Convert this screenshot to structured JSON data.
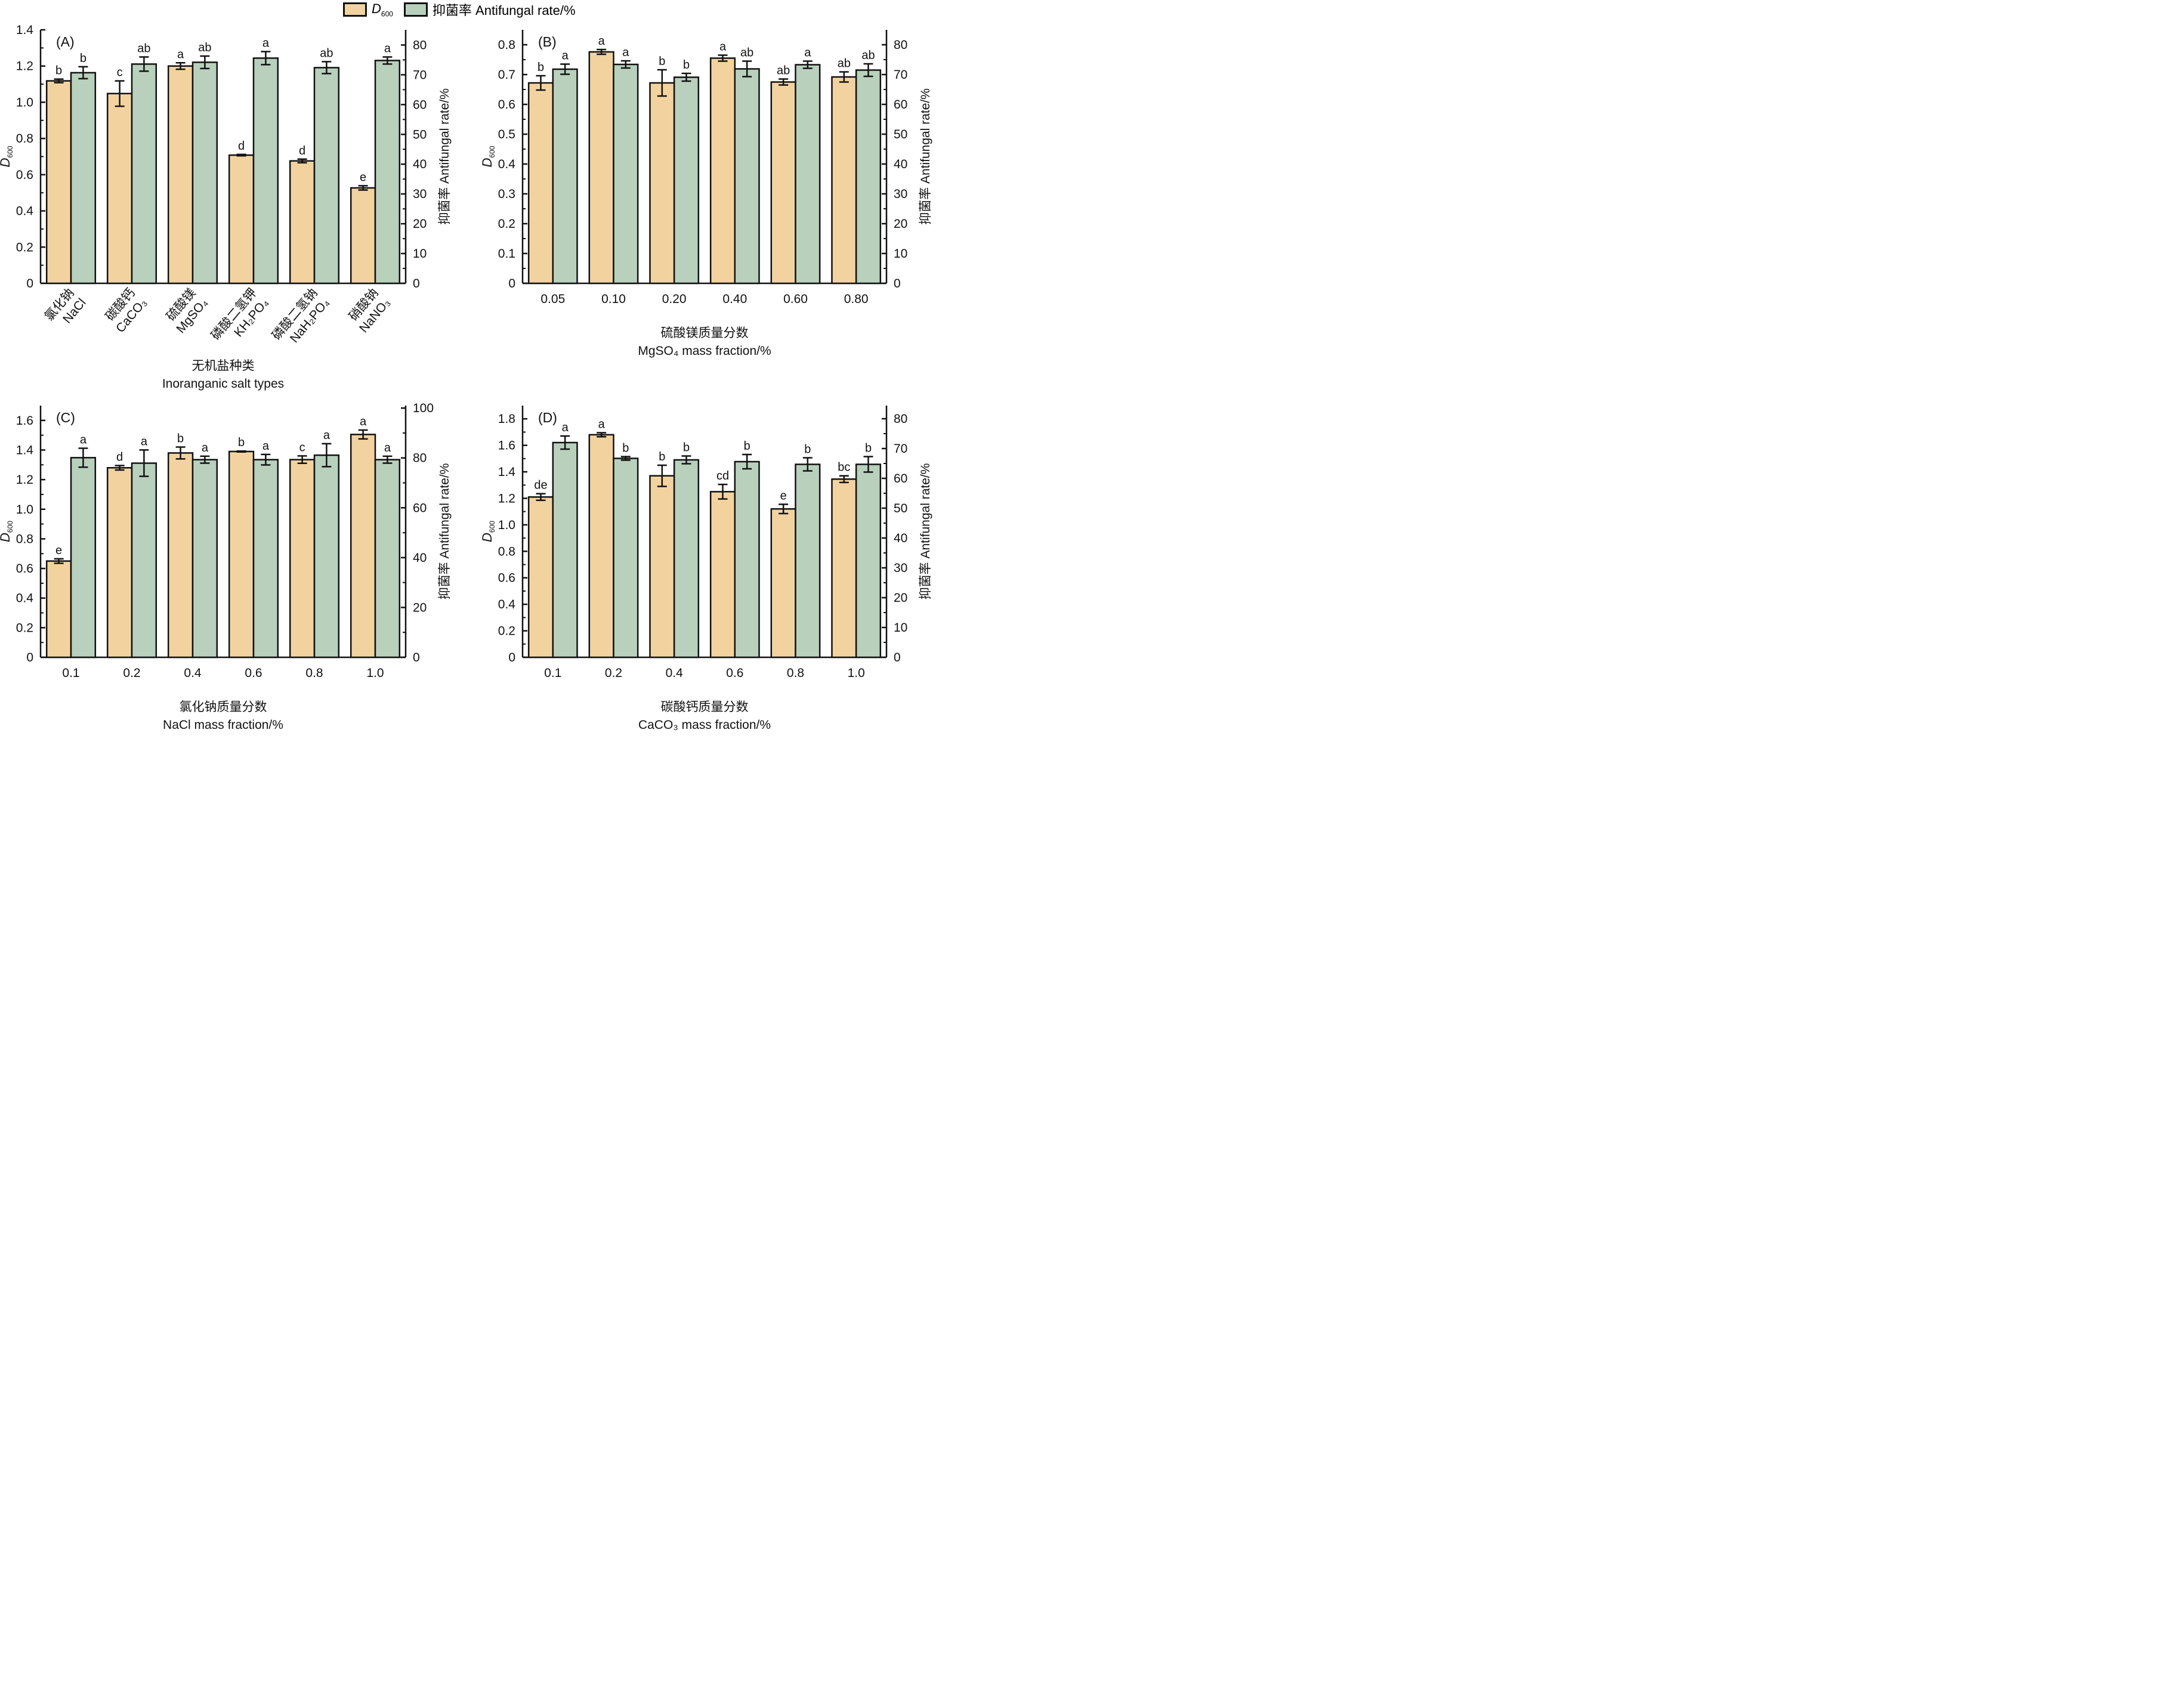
{
  "legend": {
    "d600_main": "D",
    "d600_sub": "600",
    "antifungal": "抑菌率 Antifungal rate/%"
  },
  "colors": {
    "d600": "#F2D3A0",
    "antifungal": "#B8D0BC",
    "stroke": "#111111"
  },
  "chart_data": [
    {
      "type": "bar",
      "panel": "(A)",
      "categories": [
        {
          "cn": "氯化钠",
          "en": "NaCl"
        },
        {
          "cn": "碳酸钙",
          "en": "CaCO₃"
        },
        {
          "cn": "硫酸镁",
          "en": "MgSO₄"
        },
        {
          "cn": "磷酸二氢钾",
          "en": "KH₂PO₄"
        },
        {
          "cn": "磷酸二氢钠",
          "en": "NaH₂PO₄"
        },
        {
          "cn": "硝酸钠",
          "en": "NaNO₃"
        }
      ],
      "xlabel_cn": "无机盐种类",
      "xlabel_en": "Inoranganic salt types",
      "ylabel_left": "D600",
      "ylabel_right": "抑菌率 Antifungal rate/%",
      "ylim_left": [
        0,
        1.4
      ],
      "yticks_left": [
        "0",
        "0.2",
        "0.4",
        "0.6",
        "0.8",
        "1.0",
        "1.2",
        "1.4"
      ],
      "ylim_right": [
        0,
        85.1
      ],
      "yticks_right": [
        "0",
        "10",
        "20",
        "30",
        "40",
        "50",
        "60",
        "70",
        "80"
      ],
      "series": [
        {
          "name": "D600",
          "axis": "left",
          "values": [
            1.118,
            1.048,
            1.2,
            0.708,
            0.676,
            0.527
          ],
          "errors": [
            0.01,
            0.07,
            0.018,
            0.004,
            0.01,
            0.012
          ],
          "letters": [
            "b",
            "c",
            "a",
            "d",
            "d",
            "e"
          ]
        },
        {
          "name": "Antifungal rate",
          "axis": "right",
          "values": [
            70.7,
            73.6,
            74.2,
            75.6,
            72.4,
            74.8
          ],
          "errors": [
            2.0,
            2.4,
            2.1,
            2.2,
            2.0,
            1.2
          ],
          "letters": [
            "b",
            "ab",
            "ab",
            "a",
            "ab",
            "a"
          ]
        }
      ]
    },
    {
      "type": "bar",
      "panel": "(B)",
      "categories": [
        "0.05",
        "0.10",
        "0.20",
        "0.40",
        "0.60",
        "0.80"
      ],
      "xlabel_cn": "硫酸镁质量分数",
      "xlabel_en": "MgSO₄ mass fraction/%",
      "ylabel_left": "D600",
      "ylabel_right": "抑菌率 Antifungal rate/%",
      "ylim_left": [
        0,
        0.85
      ],
      "yticks_left": [
        "0",
        "0.1",
        "0.2",
        "0.3",
        "0.4",
        "0.5",
        "0.6",
        "0.7",
        "0.8"
      ],
      "ylim_right": [
        0,
        85
      ],
      "yticks_right": [
        "0",
        "10",
        "20",
        "30",
        "40",
        "50",
        "60",
        "70",
        "80"
      ],
      "series": [
        {
          "name": "D600",
          "axis": "left",
          "values": [
            0.672,
            0.776,
            0.672,
            0.755,
            0.675,
            0.692
          ],
          "errors": [
            0.024,
            0.008,
            0.044,
            0.01,
            0.01,
            0.017
          ],
          "letters": [
            "b",
            "a",
            "b",
            "a",
            "ab",
            "ab"
          ]
        },
        {
          "name": "Antifungal rate",
          "axis": "right",
          "values": [
            71.8,
            73.4,
            69.1,
            71.9,
            73.3,
            71.5
          ],
          "errors": [
            1.7,
            1.2,
            1.3,
            2.6,
            1.2,
            2.1
          ],
          "letters": [
            "a",
            "a",
            "b",
            "ab",
            "a",
            "ab"
          ]
        }
      ]
    },
    {
      "type": "bar",
      "panel": "(C)",
      "categories": [
        "0.1",
        "0.2",
        "0.4",
        "0.6",
        "0.8",
        "1.0"
      ],
      "xlabel_cn": "氯化钠质量分数",
      "xlabel_en": "NaCl mass fraction/%",
      "ylabel_left": "D600",
      "ylabel_right": "抑菌率 Antifungal rate/%",
      "ylim_left": [
        0,
        1.7
      ],
      "yticks_left": [
        "0",
        "0.2",
        "0.4",
        "0.6",
        "0.8",
        "1.0",
        "1.2",
        "1.4",
        "1.6"
      ],
      "ylim_right": [
        0,
        101
      ],
      "yticks_right": [
        "0",
        "20",
        "40",
        "60",
        "80",
        "100"
      ],
      "series": [
        {
          "name": "D600",
          "axis": "left",
          "values": [
            0.65,
            1.28,
            1.38,
            1.39,
            1.335,
            1.505
          ],
          "errors": [
            0.015,
            0.015,
            0.04,
            0.003,
            0.025,
            0.03
          ],
          "letters": [
            "e",
            "d",
            "b",
            "b",
            "c",
            "a"
          ]
        },
        {
          "name": "Antifungal rate",
          "axis": "right",
          "values": [
            80.1,
            77.9,
            79.3,
            79.3,
            81.1,
            79.3
          ],
          "errors": [
            3.8,
            5.3,
            1.4,
            2.1,
            4.6,
            1.4
          ],
          "letters": [
            "a",
            "a",
            "a",
            "a",
            "a",
            "a"
          ]
        }
      ]
    },
    {
      "type": "bar",
      "panel": "(D)",
      "categories": [
        "0.1",
        "0.2",
        "0.4",
        "0.6",
        "0.8",
        "1.0"
      ],
      "xlabel_cn": "碳酸钙质量分数",
      "xlabel_en": "CaCO₃ mass fraction/%",
      "ylabel_left": "D600",
      "ylabel_right": "抑菌率 Antifungal rate/%",
      "ylim_left": [
        0,
        1.9
      ],
      "yticks_left": [
        "0",
        "0.2",
        "0.4",
        "0.6",
        "0.8",
        "1.0",
        "1.2",
        "1.4",
        "1.6",
        "1.8"
      ],
      "ylim_right": [
        0,
        84.4
      ],
      "yticks_right": [
        "0",
        "10",
        "20",
        "30",
        "40",
        "50",
        "60",
        "70",
        "80"
      ],
      "series": [
        {
          "name": "D600",
          "axis": "left",
          "values": [
            1.21,
            1.68,
            1.37,
            1.25,
            1.12,
            1.345
          ],
          "errors": [
            0.025,
            0.015,
            0.08,
            0.055,
            0.035,
            0.025
          ],
          "letters": [
            "de",
            "a",
            "b",
            "cd",
            "e",
            "bc"
          ]
        },
        {
          "name": "Antifungal rate",
          "axis": "right",
          "values": [
            72.0,
            66.7,
            66.2,
            65.6,
            64.7,
            64.7
          ],
          "errors": [
            2.2,
            0.6,
            1.3,
            2.4,
            2.2,
            2.6
          ],
          "letters": [
            "a",
            "b",
            "b",
            "b",
            "b",
            "b"
          ]
        }
      ]
    }
  ]
}
